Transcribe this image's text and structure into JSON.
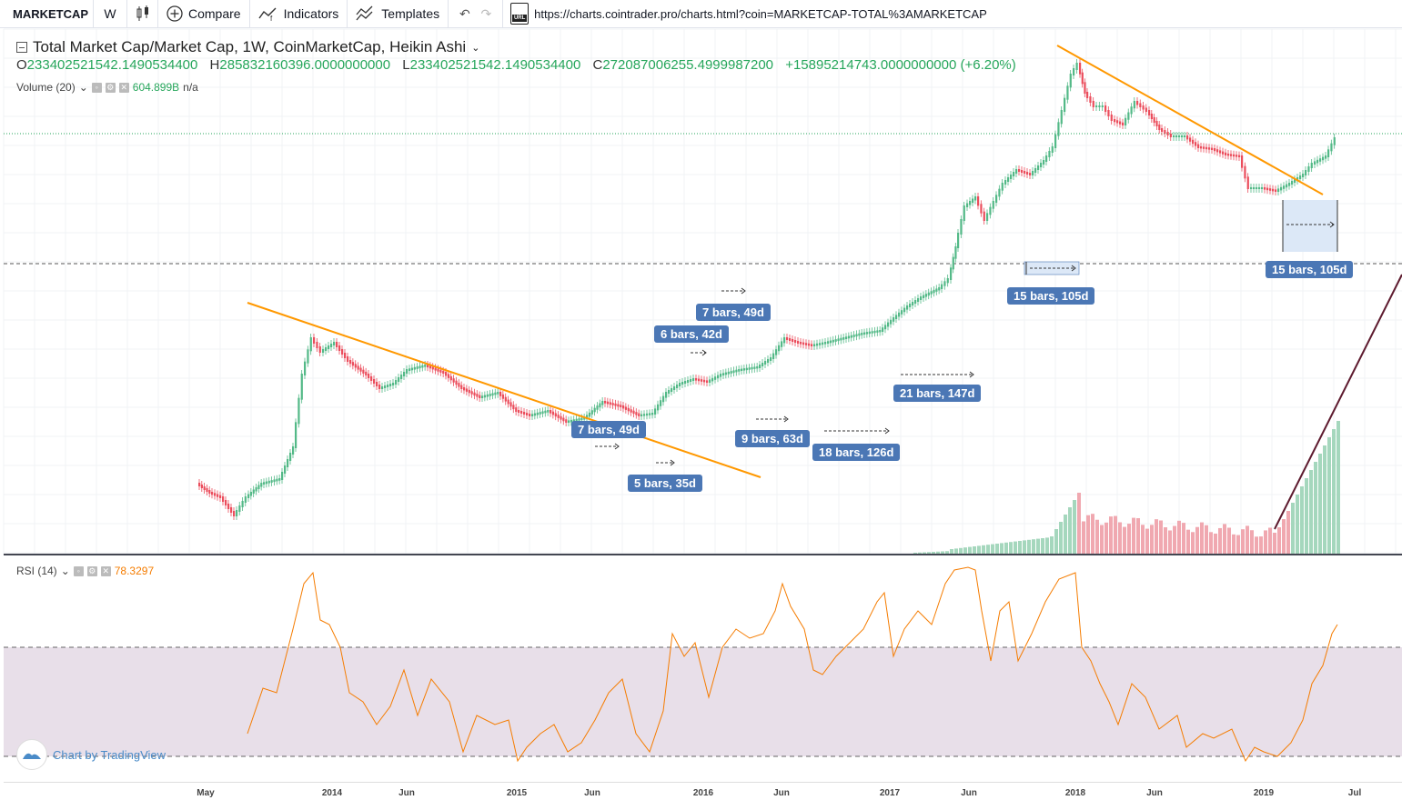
{
  "toolbar": {
    "symbol": "MARKETCAP",
    "interval": "W",
    "compare_label": "Compare",
    "indicators_label": "Indicators",
    "templates_label": "Templates",
    "url_badge": "URL",
    "url": "https://charts.cointrader.pro/charts.html?coin=MARKETCAP-TOTAL%3AMARKETCAP"
  },
  "legend": {
    "title": "Total Market Cap/Market Cap, 1W, CoinMarketCap, Heikin Ashi",
    "o_label": "O",
    "o_value": "233402521542.1490534400",
    "h_label": "H",
    "h_value": "285832160396.0000000000",
    "l_label": "L",
    "l_value": "233402521542.1490534400",
    "c_label": "C",
    "c_value": "272087006255.4999987200",
    "change": "+15895214743.0000000000 (+6.20%)"
  },
  "volume_legend": {
    "label": "Volume (20)",
    "value": "604.899B",
    "extra": "n/a"
  },
  "rsi_legend": {
    "label": "RSI (14)",
    "value": "78.3297"
  },
  "range_labels": [
    {
      "text": "7 bars, 49d"
    },
    {
      "text": "6 bars, 42d"
    },
    {
      "text": "7 bars, 49d"
    },
    {
      "text": "5 bars, 35d"
    },
    {
      "text": "9 bars, 63d"
    },
    {
      "text": "18 bars, 126d"
    },
    {
      "text": "21 bars, 147d"
    },
    {
      "text": "15 bars, 105d"
    },
    {
      "text": "15 bars, 105d"
    }
  ],
  "time_axis": [
    "May",
    "2014",
    "Jun",
    "2015",
    "Jun",
    "2016",
    "Jun",
    "2017",
    "Jun",
    "2018",
    "Jun",
    "2019",
    "Jul"
  ],
  "watermark": "Chart by TradingView",
  "colors": {
    "up": "#53b987",
    "down": "#eb4d5c",
    "trendline": "#ff9800",
    "rsi": "#f57c00",
    "rsi_band": "#e8dfe9",
    "range": "#4b77b5",
    "vol_up": "#a5d7bd",
    "vol_down": "#f0a8b0"
  }
}
